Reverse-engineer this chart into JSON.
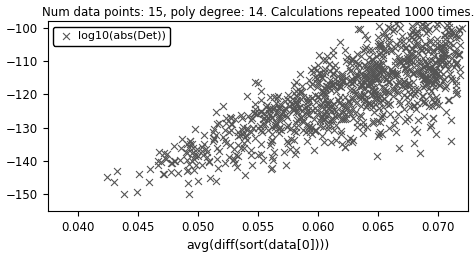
{
  "title": "Num data points: 15, poly degree: 14. Calculations repeated 1000 times.",
  "xlabel": "avg(diff(sort(data[0])))",
  "legend_label": "log10(abs(Det))",
  "marker": "x",
  "marker_color": "#555555",
  "marker_size": 5,
  "marker_lw": 0.8,
  "xlim": [
    0.0375,
    0.0725
  ],
  "ylim": [
    -155,
    -98
  ],
  "yticks": [
    -150,
    -140,
    -130,
    -120,
    -110,
    -100
  ],
  "xticks": [
    0.04,
    0.045,
    0.05,
    0.055,
    0.06,
    0.065,
    0.07
  ],
  "title_fontsize": 8.5,
  "axis_fontsize": 9,
  "tick_fontsize": 8.5,
  "legend_fontsize": 8,
  "seed": 42,
  "n_points": 1000,
  "x_min": 0.039,
  "x_max": 0.072,
  "bg_color": "#ffffff"
}
